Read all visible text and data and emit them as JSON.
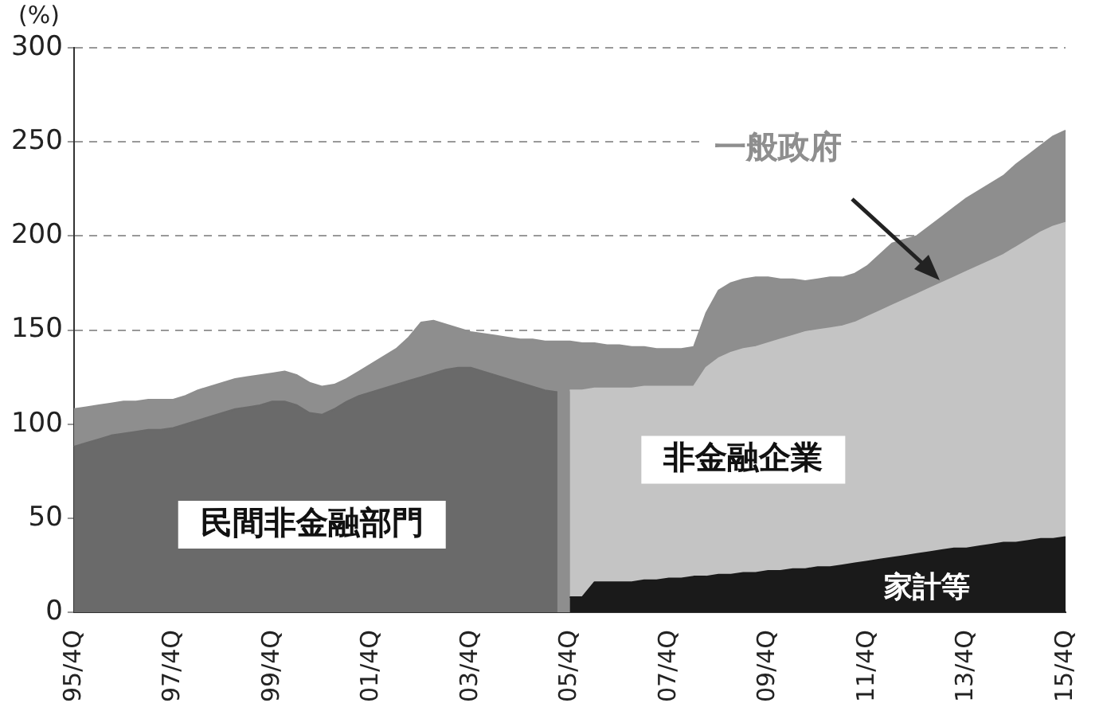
{
  "chart_data": {
    "type": "area",
    "stacked": true,
    "ylabel": "(%)",
    "ylim": [
      0,
      300
    ],
    "yticks": [
      0,
      50,
      100,
      150,
      200,
      250,
      300
    ],
    "grid": "y",
    "legend": false,
    "categories": [
      "95/4Q",
      null,
      null,
      null,
      null,
      null,
      null,
      null,
      "97/4Q",
      null,
      null,
      null,
      null,
      null,
      null,
      null,
      "99/4Q",
      null,
      null,
      null,
      null,
      null,
      null,
      null,
      "01/4Q",
      null,
      null,
      null,
      null,
      null,
      null,
      null,
      "03/4Q",
      null,
      null,
      null,
      null,
      null,
      null,
      null,
      "05/4Q",
      null,
      null,
      null,
      null,
      null,
      null,
      null,
      "07/4Q",
      null,
      null,
      null,
      null,
      null,
      null,
      null,
      "09/4Q",
      null,
      null,
      null,
      null,
      null,
      null,
      null,
      "11/4Q",
      null,
      null,
      null,
      null,
      null,
      null,
      null,
      "13/4Q",
      null,
      null,
      null,
      null,
      null,
      null,
      null,
      "15/4Q"
    ],
    "series": [
      {
        "name": "家計等",
        "color": "#1a1a1a",
        "values": [
          null,
          null,
          null,
          null,
          null,
          null,
          null,
          null,
          null,
          null,
          null,
          null,
          null,
          null,
          null,
          null,
          null,
          null,
          null,
          null,
          null,
          null,
          null,
          null,
          null,
          null,
          null,
          null,
          null,
          null,
          null,
          null,
          null,
          null,
          null,
          null,
          null,
          null,
          null,
          null,
          8,
          8,
          16,
          16,
          16,
          16,
          17,
          17,
          18,
          18,
          19,
          19,
          20,
          20,
          21,
          21,
          22,
          22,
          23,
          23,
          24,
          24,
          25,
          26,
          27,
          28,
          29,
          30,
          31,
          32,
          33,
          34,
          34,
          35,
          36,
          37,
          37,
          38,
          39,
          39,
          40
        ]
      },
      {
        "name": "民間非金融部門",
        "color": "#6a6a6a",
        "values": [
          88,
          90,
          92,
          94,
          95,
          96,
          97,
          97,
          98,
          100,
          102,
          104,
          106,
          108,
          109,
          110,
          112,
          112,
          110,
          106,
          105,
          108,
          112,
          115,
          117,
          119,
          121,
          123,
          125,
          127,
          129,
          130,
          130,
          128,
          126,
          124,
          122,
          120,
          118,
          117,
          null,
          null,
          null,
          null,
          null,
          null,
          null,
          null,
          null,
          null,
          null,
          null,
          null,
          null,
          null,
          null,
          null,
          null,
          null,
          null,
          null,
          null,
          null,
          null,
          null,
          null,
          null,
          null,
          null,
          null,
          null,
          null,
          null,
          null,
          null,
          null,
          null,
          null,
          null,
          null,
          null
        ]
      },
      {
        "name": "非金融企業",
        "color": "#c4c4c4",
        "values": [
          null,
          null,
          null,
          null,
          null,
          null,
          null,
          null,
          null,
          null,
          null,
          null,
          null,
          null,
          null,
          null,
          null,
          null,
          null,
          null,
          null,
          null,
          null,
          null,
          null,
          null,
          null,
          null,
          null,
          null,
          null,
          null,
          null,
          null,
          null,
          null,
          null,
          null,
          null,
          null,
          110,
          110,
          103,
          103,
          103,
          103,
          103,
          103,
          102,
          102,
          101,
          111,
          115,
          118,
          119,
          120,
          121,
          123,
          124,
          126,
          126,
          127,
          127,
          128,
          130,
          132,
          134,
          136,
          138,
          140,
          142,
          144,
          147,
          149,
          151,
          153,
          157,
          160,
          163,
          166,
          167
        ]
      },
      {
        "name": "一般政府",
        "color": "#8e8e8e",
        "values": [
          20,
          19,
          18,
          17,
          17,
          16,
          16,
          16,
          15,
          15,
          16,
          16,
          16,
          16,
          16,
          16,
          15,
          16,
          16,
          16,
          15,
          13,
          12,
          13,
          15,
          17,
          19,
          23,
          29,
          28,
          24,
          21,
          19,
          20,
          21,
          22,
          23,
          25,
          26,
          27,
          26,
          25,
          24,
          23,
          23,
          22,
          21,
          20,
          20,
          20,
          21,
          29,
          36,
          37,
          37,
          37,
          35,
          32,
          30,
          27,
          27,
          27,
          26,
          26,
          27,
          30,
          33,
          32,
          31,
          33,
          35,
          37,
          39,
          40,
          41,
          42,
          44,
          45,
          46,
          48,
          49
        ]
      }
    ]
  }
}
